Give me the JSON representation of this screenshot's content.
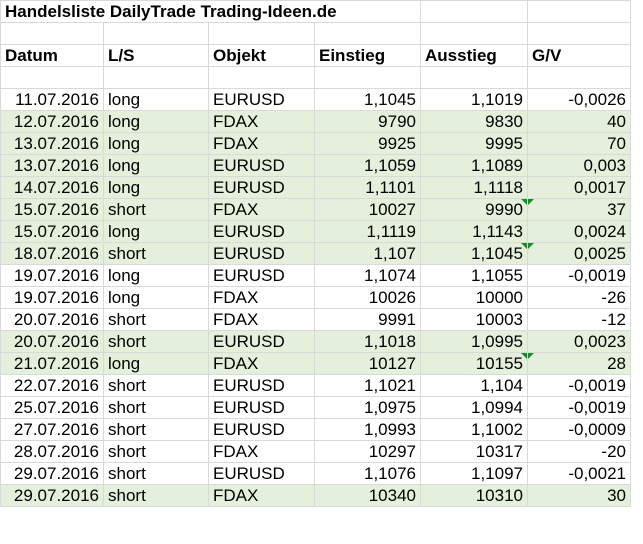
{
  "title": "Handelsliste DailyTrade Trading-Ideen.de",
  "headers": [
    "Datum",
    "L/S",
    "Objekt",
    "Einstieg",
    "Ausstieg",
    "G/V"
  ],
  "rows": [
    {
      "datum": "11.07.2016",
      "ls": "long",
      "objekt": "EURUSD",
      "einstieg": "1,1045",
      "ausstieg": "1,1019",
      "gv": "-0,0026",
      "green": false,
      "flag": false
    },
    {
      "datum": "12.07.2016",
      "ls": "long",
      "objekt": "FDAX",
      "einstieg": "9790",
      "ausstieg": "9830",
      "gv": "40",
      "green": true,
      "flag": false
    },
    {
      "datum": "13.07.2016",
      "ls": "long",
      "objekt": "FDAX",
      "einstieg": "9925",
      "ausstieg": "9995",
      "gv": "70",
      "green": true,
      "flag": false
    },
    {
      "datum": "13.07.2016",
      "ls": "long",
      "objekt": "EURUSD",
      "einstieg": "1,1059",
      "ausstieg": "1,1089",
      "gv": "0,003",
      "green": true,
      "flag": false
    },
    {
      "datum": "14.07.2016",
      "ls": "long",
      "objekt": "EURUSD",
      "einstieg": "1,1101",
      "ausstieg": "1,1118",
      "gv": "0,0017",
      "green": true,
      "flag": false
    },
    {
      "datum": "15.07.2016",
      "ls": "short",
      "objekt": "FDAX",
      "einstieg": "10027",
      "ausstieg": "9990",
      "gv": "37",
      "green": true,
      "flag": true
    },
    {
      "datum": "15.07.2016",
      "ls": "long",
      "objekt": "EURUSD",
      "einstieg": "1,1119",
      "ausstieg": "1,1143",
      "gv": "0,0024",
      "green": true,
      "flag": false
    },
    {
      "datum": "18.07.2016",
      "ls": "short",
      "objekt": "EURUSD",
      "einstieg": "1,107",
      "ausstieg": "1,1045",
      "gv": "0,0025",
      "green": true,
      "flag": true
    },
    {
      "datum": "19.07.2016",
      "ls": "long",
      "objekt": "EURUSD",
      "einstieg": "1,1074",
      "ausstieg": "1,1055",
      "gv": "-0,0019",
      "green": false,
      "flag": false
    },
    {
      "datum": "19.07.2016",
      "ls": "long",
      "objekt": "FDAX",
      "einstieg": "10026",
      "ausstieg": "10000",
      "gv": "-26",
      "green": false,
      "flag": false
    },
    {
      "datum": "20.07.2016",
      "ls": "short",
      "objekt": "FDAX",
      "einstieg": "9991",
      "ausstieg": "10003",
      "gv": "-12",
      "green": false,
      "flag": false
    },
    {
      "datum": "20.07.2016",
      "ls": "short",
      "objekt": "EURUSD",
      "einstieg": "1,1018",
      "ausstieg": "1,0995",
      "gv": "0,0023",
      "green": true,
      "flag": false
    },
    {
      "datum": "21.07.2016",
      "ls": "long",
      "objekt": "FDAX",
      "einstieg": "10127",
      "ausstieg": "10155",
      "gv": "28",
      "green": true,
      "flag": true
    },
    {
      "datum": "22.07.2016",
      "ls": "short",
      "objekt": "EURUSD",
      "einstieg": "1,1021",
      "ausstieg": "1,104",
      "gv": "-0,0019",
      "green": false,
      "flag": false
    },
    {
      "datum": "25.07.2016",
      "ls": "short",
      "objekt": "EURUSD",
      "einstieg": "1,0975",
      "ausstieg": "1,0994",
      "gv": "-0,0019",
      "green": false,
      "flag": false
    },
    {
      "datum": "27.07.2016",
      "ls": "short",
      "objekt": "EURUSD",
      "einstieg": "1,0993",
      "ausstieg": "1,1002",
      "gv": "-0,0009",
      "green": false,
      "flag": false
    },
    {
      "datum": "28.07.2016",
      "ls": "short",
      "objekt": "FDAX",
      "einstieg": "10297",
      "ausstieg": "10317",
      "gv": "-20",
      "green": false,
      "flag": false
    },
    {
      "datum": "29.07.2016",
      "ls": "short",
      "objekt": "EURUSD",
      "einstieg": "1,1076",
      "ausstieg": "1,1097",
      "gv": "-0,0021",
      "green": false,
      "flag": false
    },
    {
      "datum": "29.07.2016",
      "ls": "short",
      "objekt": "FDAX",
      "einstieg": "10340",
      "ausstieg": "10310",
      "gv": "30",
      "green": true,
      "flag": false
    }
  ],
  "colors": {
    "profit_fill": "#e4f0dc",
    "gridline": "#d9d9d9",
    "comment_flag": "#1a8a2a"
  }
}
